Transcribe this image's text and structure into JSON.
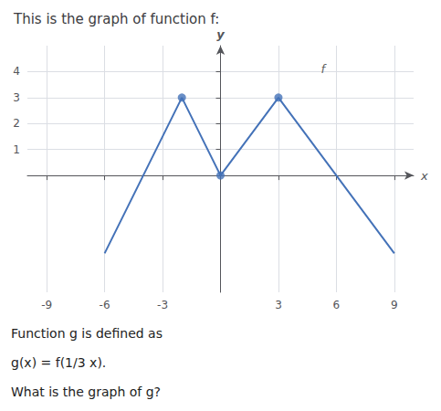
{
  "chart_data": {
    "type": "line",
    "title": "This is the graph of function f:",
    "xlabel": "x",
    "ylabel": "y",
    "series": [
      {
        "type": "line",
        "color": "#4472b8",
        "x": [
          -6,
          -2,
          0,
          3,
          9
        ],
        "values": [
          -3,
          3,
          0,
          3,
          -3
        ]
      },
      {
        "type": "scatter",
        "color": "#4472b8",
        "x": [
          -2,
          0,
          3
        ],
        "values": [
          3,
          0,
          3
        ]
      }
    ],
    "xlim": [
      -10,
      10
    ],
    "ylim": [
      -4.5,
      5.0
    ],
    "xticks": [
      -9,
      -6,
      -3,
      3,
      6,
      9
    ],
    "yticks": [
      1,
      2,
      3,
      4
    ],
    "grid": true,
    "annotations": [
      {
        "text": "f",
        "x": 5.2,
        "y": 4.1
      },
      {
        "text": "Function g is defined as"
      },
      {
        "text": "g(x) = f(1/3 x)."
      },
      {
        "text": "What is the graph of g?"
      }
    ]
  }
}
